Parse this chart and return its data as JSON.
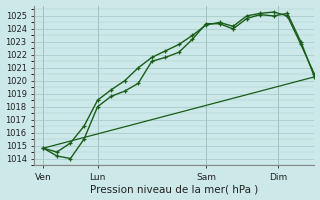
{
  "bg_color": "#cce8e8",
  "grid_color": "#aacccc",
  "line_color": "#1a5c1a",
  "title": "Pression niveau de la mer( hPa )",
  "ylim": [
    1013.5,
    1025.8
  ],
  "yticks": [
    1014,
    1015,
    1016,
    1017,
    1018,
    1019,
    1020,
    1021,
    1022,
    1023,
    1024,
    1025
  ],
  "day_labels": [
    "Ven",
    "Lun",
    "Sam",
    "Dim"
  ],
  "day_positions": [
    0,
    24,
    72,
    104
  ],
  "xlim": [
    -4,
    120
  ],
  "line1_x": [
    0,
    6,
    12,
    18,
    24,
    30,
    36,
    42,
    48,
    54,
    60,
    66,
    72,
    78,
    84,
    90,
    96,
    102,
    108,
    114,
    120
  ],
  "line1_y": [
    1014.8,
    1014.2,
    1014.0,
    1015.5,
    1018.0,
    1018.8,
    1019.2,
    1019.8,
    1021.5,
    1021.8,
    1022.2,
    1023.2,
    1024.4,
    1024.4,
    1024.0,
    1024.8,
    1025.1,
    1025.0,
    1025.2,
    1023.0,
    1020.3
  ],
  "line2_x": [
    0,
    6,
    12,
    18,
    24,
    30,
    36,
    42,
    48,
    54,
    60,
    66,
    72,
    78,
    84,
    90,
    96,
    102,
    108,
    114,
    120
  ],
  "line2_y": [
    1014.8,
    1014.5,
    1015.2,
    1016.5,
    1018.5,
    1019.3,
    1020.0,
    1021.0,
    1021.8,
    1022.3,
    1022.8,
    1023.5,
    1024.3,
    1024.5,
    1024.2,
    1025.0,
    1025.2,
    1025.3,
    1025.0,
    1022.8,
    1020.5
  ],
  "line3_x": [
    0,
    120
  ],
  "line3_y": [
    1014.8,
    1020.3
  ]
}
